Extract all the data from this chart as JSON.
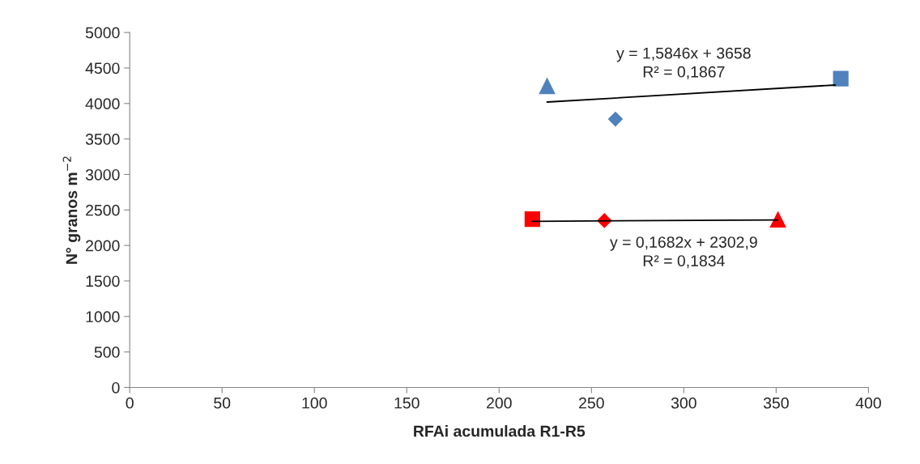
{
  "chart_data": {
    "type": "scatter",
    "xlabel": "RFAi acumulada R1-R5",
    "ylabel": "N° granos m$^{−2}$",
    "xlim": [
      0,
      400
    ],
    "xticks": [
      0,
      50,
      100,
      150,
      200,
      250,
      300,
      350,
      400
    ],
    "ylim": [
      0,
      5000
    ],
    "yticks": [
      0,
      500,
      1000,
      1500,
      2000,
      2500,
      3000,
      3500,
      4000,
      4500,
      5000
    ],
    "grid": false,
    "legend": false,
    "series": [
      {
        "marker": "triangle",
        "color": "#4f81bd",
        "x": [
          226
        ],
        "values": [
          4250
        ]
      },
      {
        "marker": "diamond",
        "color": "#4f81bd",
        "x": [
          263
        ],
        "values": [
          3780
        ]
      },
      {
        "marker": "square",
        "color": "#4f81bd",
        "x": [
          385
        ],
        "values": [
          4350
        ]
      },
      {
        "marker": "square",
        "color": "#ff0000",
        "x": [
          218
        ],
        "values": [
          2370
        ]
      },
      {
        "marker": "diamond",
        "color": "#ff0000",
        "x": [
          257
        ],
        "values": [
          2350
        ]
      },
      {
        "marker": "triangle",
        "color": "#ff0000",
        "x": [
          351
        ],
        "values": [
          2370
        ]
      },
      {
        "type": "line",
        "color": "#000000",
        "line_style": "solid",
        "marker": "none",
        "x": [
          226,
          382
        ],
        "values": [
          4020,
          4260
        ]
      },
      {
        "type": "line",
        "color": "#000000",
        "line_style": "solid",
        "marker": "none",
        "x": [
          218,
          351
        ],
        "values": [
          2340,
          2360
        ]
      }
    ],
    "annotations": [
      {
        "text": "y = 1,5846x + 3658\nR² = 0,1867",
        "x": 300,
        "y": 4133
      },
      {
        "text": "y = 0,1682x + 2302,9\nR² = 0,1834",
        "x": 300,
        "y": 2353
      }
    ]
  }
}
